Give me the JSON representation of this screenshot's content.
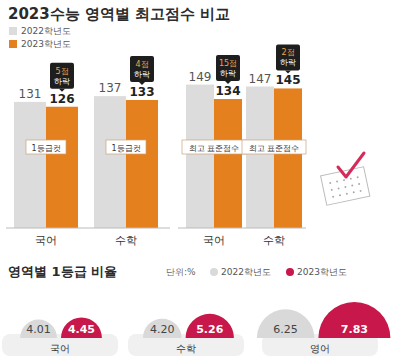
{
  "chart_data": [
    {
      "type": "bar",
      "title": "2023수능 영역별 최고점수 비교",
      "categories": [
        "국어",
        "수학"
      ],
      "series": [
        {
          "name": "2022학년도",
          "color": "#dcdcdc",
          "values": [
            131,
            137
          ]
        },
        {
          "name": "2023학년도",
          "color": "#e5801f",
          "values": [
            126,
            133
          ]
        }
      ],
      "ylim": [
        0,
        160
      ],
      "data_labels": true,
      "tick_labels": "x",
      "legend": "top-left",
      "annotation": "1등급컷",
      "callouts": [
        "5점 하락",
        "4점 하락"
      ]
    },
    {
      "type": "bar",
      "categories": [
        "국어",
        "수학"
      ],
      "series": [
        {
          "color": "#dcdcdc",
          "values": [
            149,
            147
          ]
        },
        {
          "color": "#e5801f",
          "values": [
            134,
            145
          ]
        }
      ],
      "ylim": [
        0,
        160
      ],
      "data_labels": true,
      "tick_labels": "x",
      "annotation": "최고 표준점수",
      "callouts": [
        "15점 하락",
        "2점 하락"
      ]
    },
    {
      "type": "semicircle",
      "title": "영역별 1등급 비율",
      "unit": "단위:%",
      "categories": [
        "국어",
        "수학",
        "영어"
      ],
      "series": [
        {
          "name": "2022학년도",
          "color": "#d9d9d9",
          "values": [
            4.01,
            4.2,
            6.25
          ],
          "value_labels": [
            "4.01",
            "4.20",
            "6.25"
          ]
        },
        {
          "name": "2023학년도",
          "color": "#c8174a",
          "values": [
            4.45,
            5.26,
            7.83
          ],
          "value_labels": [
            "4.45",
            "5.26",
            "7.83"
          ]
        }
      ],
      "data_labels": true,
      "tick_labels": "x",
      "legend": "top-right"
    }
  ]
}
